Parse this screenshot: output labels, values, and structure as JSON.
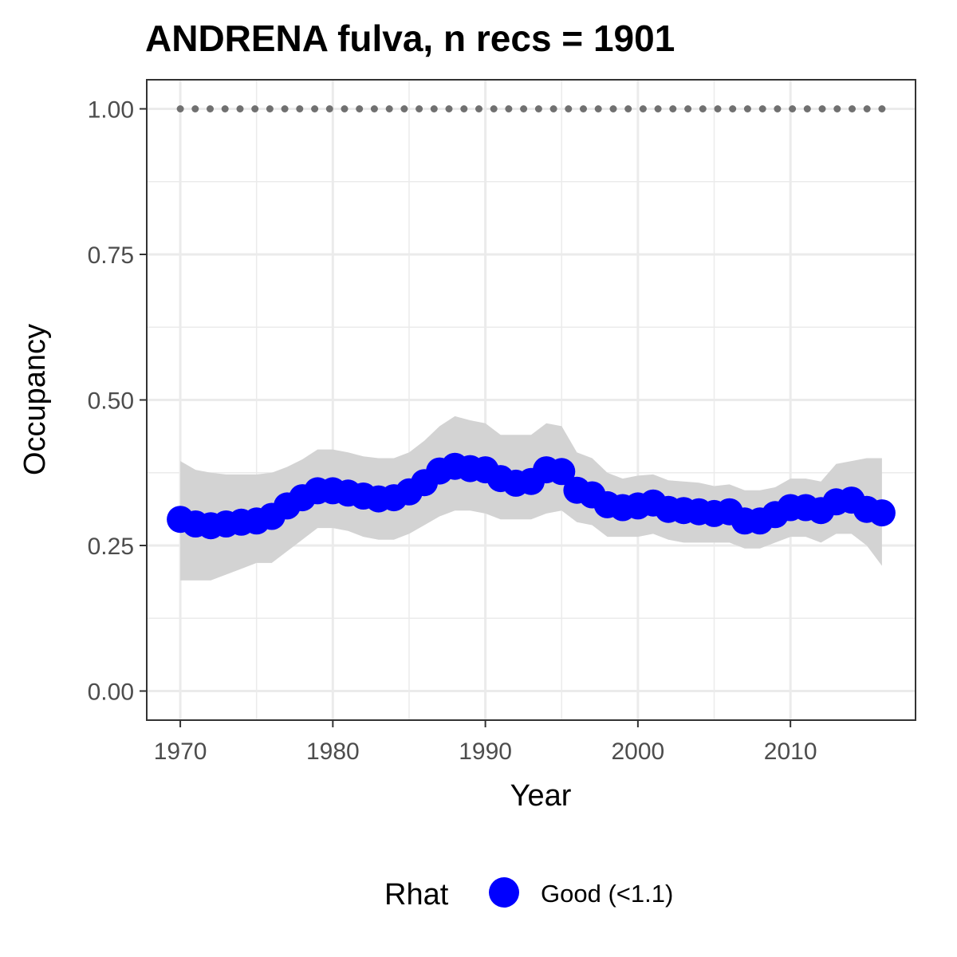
{
  "chart_data": {
    "type": "line",
    "title": "ANDRENA fulva, n recs = 1901",
    "xlabel": "Year",
    "ylabel": "Occupancy",
    "xlim": [
      1967.8,
      2018.2
    ],
    "ylim": [
      -0.05,
      1.05
    ],
    "x_ticks": [
      1970,
      1980,
      1990,
      2000,
      2010
    ],
    "x_tick_labels": [
      "1970",
      "1980",
      "1990",
      "2000",
      "2010"
    ],
    "y_ticks": [
      0,
      0.25,
      0.5,
      0.75,
      1.0
    ],
    "y_tick_labels": [
      "0.00",
      "0.25",
      "0.50",
      "0.75",
      "1.00"
    ],
    "grid": true,
    "legend": {
      "title": "Rhat",
      "position": "bottom",
      "entries": [
        {
          "label": "Good (<1.1)",
          "color": "#0000ff"
        }
      ]
    },
    "colors": {
      "points": "#0000ff",
      "ribbon": "#d3d3d3",
      "reference": "#707070",
      "grid": "#ebebeb",
      "panel_border": "#333333"
    },
    "reference_line": {
      "y": 1.0,
      "style": "dotted"
    },
    "x": [
      1970,
      1971,
      1972,
      1973,
      1974,
      1975,
      1976,
      1977,
      1978,
      1979,
      1980,
      1981,
      1982,
      1983,
      1984,
      1985,
      1986,
      1987,
      1988,
      1989,
      1990,
      1991,
      1992,
      1993,
      1994,
      1995,
      1996,
      1997,
      1998,
      1999,
      2000,
      2001,
      2002,
      2003,
      2004,
      2005,
      2006,
      2007,
      2008,
      2009,
      2010,
      2011,
      2012,
      2013,
      2014,
      2015,
      2016
    ],
    "series": [
      {
        "name": "Good (<1.1)",
        "values": [
          0.295,
          0.287,
          0.284,
          0.287,
          0.29,
          0.292,
          0.3,
          0.318,
          0.332,
          0.344,
          0.344,
          0.34,
          0.335,
          0.33,
          0.332,
          0.342,
          0.358,
          0.378,
          0.386,
          0.382,
          0.38,
          0.365,
          0.357,
          0.36,
          0.38,
          0.377,
          0.345,
          0.337,
          0.32,
          0.315,
          0.318,
          0.323,
          0.312,
          0.31,
          0.308,
          0.305,
          0.308,
          0.292,
          0.292,
          0.303,
          0.315,
          0.315,
          0.31,
          0.325,
          0.328,
          0.312,
          0.306
        ],
        "lower": [
          0.19,
          0.19,
          0.19,
          0.2,
          0.21,
          0.22,
          0.22,
          0.24,
          0.26,
          0.28,
          0.28,
          0.275,
          0.265,
          0.26,
          0.26,
          0.27,
          0.285,
          0.3,
          0.31,
          0.31,
          0.305,
          0.295,
          0.295,
          0.295,
          0.305,
          0.31,
          0.29,
          0.285,
          0.265,
          0.265,
          0.265,
          0.27,
          0.26,
          0.255,
          0.255,
          0.255,
          0.255,
          0.245,
          0.245,
          0.255,
          0.265,
          0.265,
          0.255,
          0.27,
          0.27,
          0.25,
          0.215
        ],
        "upper": [
          0.395,
          0.38,
          0.375,
          0.372,
          0.372,
          0.372,
          0.375,
          0.385,
          0.398,
          0.415,
          0.415,
          0.41,
          0.403,
          0.4,
          0.4,
          0.41,
          0.43,
          0.455,
          0.472,
          0.465,
          0.46,
          0.44,
          0.44,
          0.44,
          0.46,
          0.455,
          0.41,
          0.4,
          0.375,
          0.365,
          0.37,
          0.372,
          0.362,
          0.36,
          0.358,
          0.352,
          0.355,
          0.345,
          0.345,
          0.35,
          0.365,
          0.365,
          0.36,
          0.39,
          0.395,
          0.4,
          0.4
        ]
      }
    ]
  }
}
